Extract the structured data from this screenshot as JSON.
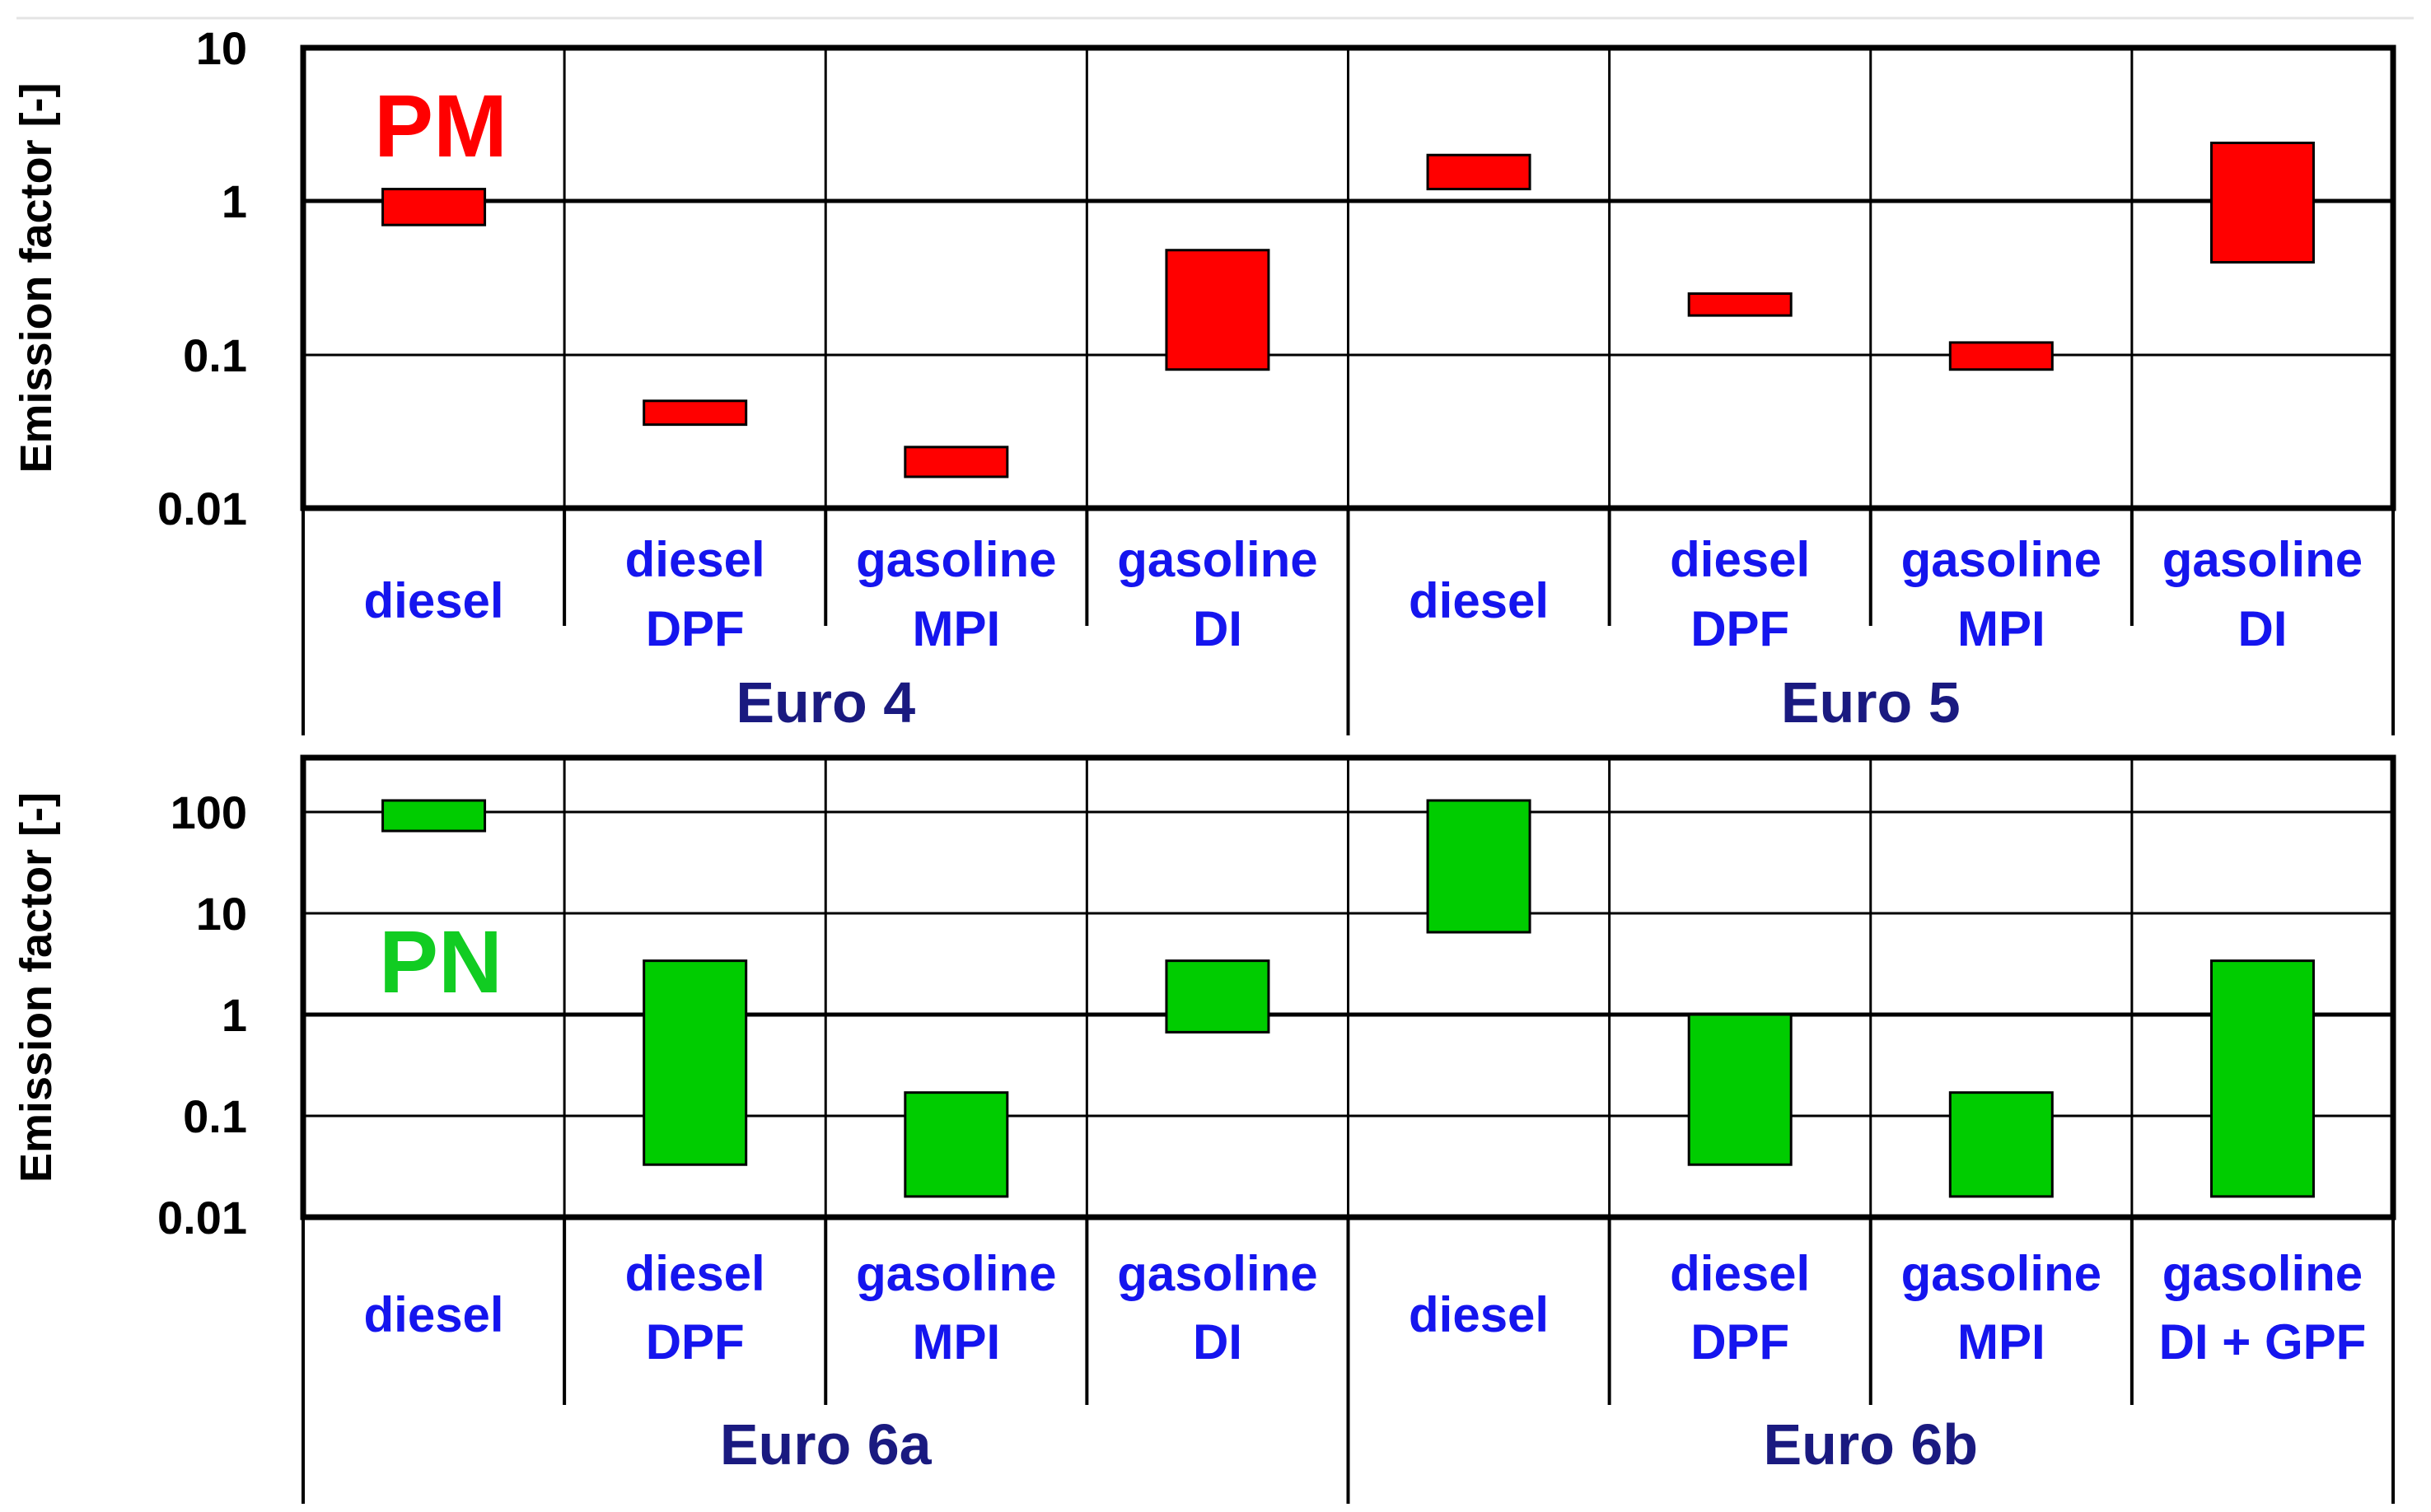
{
  "chart_data": [
    {
      "type": "bar",
      "subtype": "floating-range",
      "y_scale": "log",
      "grid": true,
      "label": "PM",
      "ylabel": "Emission factor [-]",
      "ylim": [
        0.01,
        10
      ],
      "yticks": [
        "0.01",
        "0.1",
        "1",
        "10"
      ],
      "categories": [
        [
          "diesel"
        ],
        [
          "diesel",
          "DPF"
        ],
        [
          "gasoline",
          "MPI"
        ],
        [
          "gasoline",
          "DI"
        ],
        [
          "diesel"
        ],
        [
          "diesel",
          "DPF"
        ],
        [
          "gasoline",
          "MPI"
        ],
        [
          "gasoline",
          "DI"
        ]
      ],
      "groups": [
        {
          "name": "Euro 4",
          "span": [
            0,
            3
          ]
        },
        {
          "name": "Euro 5",
          "span": [
            4,
            7
          ]
        }
      ],
      "values": [
        {
          "low": 0.7,
          "high": 1.2
        },
        {
          "low": 0.035,
          "high": 0.05
        },
        {
          "low": 0.016,
          "high": 0.025
        },
        {
          "low": 0.08,
          "high": 0.48
        },
        {
          "low": 1.2,
          "high": 2.0
        },
        {
          "low": 0.18,
          "high": 0.25
        },
        {
          "low": 0.08,
          "high": 0.12
        },
        {
          "low": 0.4,
          "high": 2.4
        }
      ],
      "color": "#ff0000"
    },
    {
      "type": "bar",
      "subtype": "floating-range",
      "y_scale": "log",
      "grid": true,
      "label": "PN",
      "ylabel": "Emission factor [-]",
      "ylim": [
        0.01,
        300
      ],
      "yticks": [
        "0.01",
        "0.1",
        "1",
        "10",
        "100"
      ],
      "categories": [
        [
          "diesel"
        ],
        [
          "diesel",
          "DPF"
        ],
        [
          "gasoline",
          "MPI"
        ],
        [
          "gasoline",
          "DI"
        ],
        [
          "diesel"
        ],
        [
          "diesel",
          "DPF"
        ],
        [
          "gasoline",
          "MPI"
        ],
        [
          "gasoline",
          "DI + GPF"
        ]
      ],
      "groups": [
        {
          "name": "Euro 6a",
          "span": [
            0,
            3
          ]
        },
        {
          "name": "Euro 6b",
          "span": [
            4,
            7
          ]
        }
      ],
      "values": [
        {
          "low": 65,
          "high": 130
        },
        {
          "low": 0.033,
          "high": 3.4
        },
        {
          "low": 0.016,
          "high": 0.17
        },
        {
          "low": 0.67,
          "high": 3.4
        },
        {
          "low": 6.5,
          "high": 130
        },
        {
          "low": 0.033,
          "high": 1.0
        },
        {
          "low": 0.016,
          "high": 0.17
        },
        {
          "low": 0.016,
          "high": 3.4
        }
      ],
      "color": "#00cc00"
    }
  ],
  "colors": {
    "pm_label": "#ff0000",
    "pn_label": "#11cc22",
    "category_text": "#1515ee",
    "group_text": "#1a1a80",
    "pm_bar": "#ff0000",
    "pn_bar": "#00cc00"
  }
}
